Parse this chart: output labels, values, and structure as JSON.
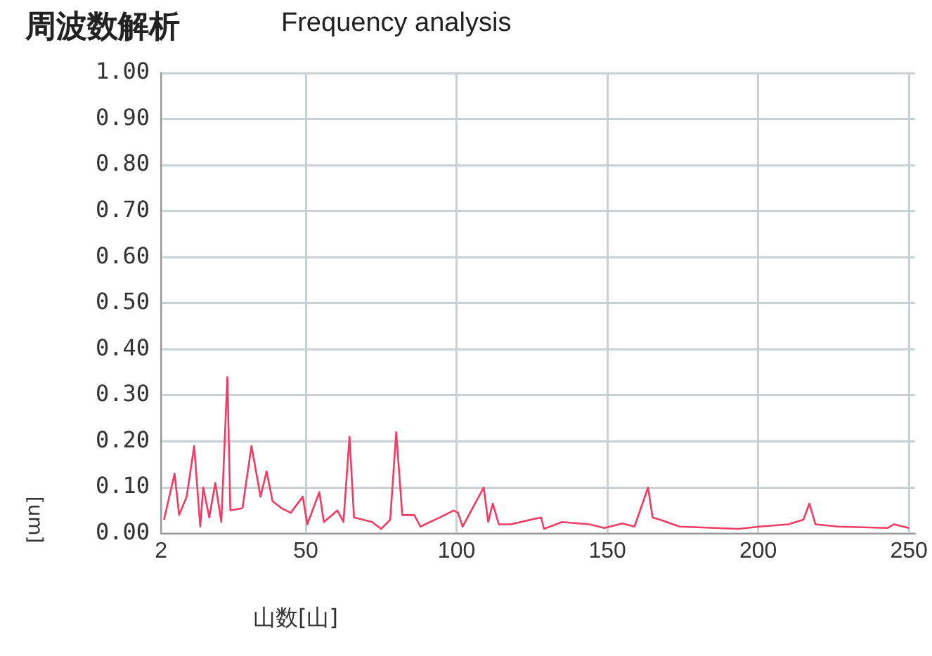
{
  "chart_data": {
    "type": "line",
    "title": "周波数解析",
    "subtitle": "Frequency analysis",
    "xlabel": "山数[山]",
    "ylabel": "[um]",
    "x": [
      3,
      6.5,
      8,
      10.5,
      13,
      15,
      16,
      18,
      20,
      22,
      24,
      25,
      29,
      32,
      35,
      37,
      39,
      42,
      45,
      49,
      50.5,
      54.5,
      56,
      60.5,
      62.5,
      64.5,
      66,
      72,
      75,
      78,
      80,
      82,
      86,
      88,
      94.5,
      99,
      100.5,
      102,
      109,
      110.5,
      112,
      114,
      118,
      128,
      129,
      135,
      144,
      149,
      155,
      159,
      163.5,
      165,
      167.5,
      174,
      186,
      193.5,
      200.5,
      210,
      215,
      217,
      219,
      226.5,
      243,
      245,
      250
    ],
    "series": [
      {
        "color": "#f03c64",
        "values": [
          0.03,
          0.13,
          0.04,
          0.08,
          0.19,
          0.015,
          0.1,
          0.035,
          0.11,
          0.025,
          0.34,
          0.05,
          0.055,
          0.19,
          0.08,
          0.135,
          0.07,
          0.055,
          0.045,
          0.08,
          0.02,
          0.09,
          0.025,
          0.05,
          0.025,
          0.21,
          0.035,
          0.025,
          0.01,
          0.03,
          0.22,
          0.04,
          0.04,
          0.015,
          0.035,
          0.05,
          0.045,
          0.015,
          0.1,
          0.025,
          0.065,
          0.02,
          0.02,
          0.035,
          0.01,
          0.025,
          0.02,
          0.012,
          0.022,
          0.015,
          0.1,
          0.035,
          0.03,
          0.015,
          0.012,
          0.01,
          0.015,
          0.02,
          0.03,
          0.065,
          0.02,
          0.015,
          0.012,
          0.02,
          0.012
        ]
      }
    ],
    "xlim": [
      2,
      252
    ],
    "xticks": [
      2,
      50,
      100,
      150,
      200,
      250
    ],
    "ylim": [
      0,
      1
    ],
    "yticks": [
      {
        "value": 0,
        "label": "0.00"
      },
      {
        "value": 0.1,
        "label": "0.10"
      },
      {
        "value": 0.2,
        "label": "0.20"
      },
      {
        "value": 0.3,
        "label": "0.30"
      },
      {
        "value": 0.4,
        "label": "0.40"
      },
      {
        "value": 0.5,
        "label": "0.50"
      },
      {
        "value": 0.6,
        "label": "0.60"
      },
      {
        "value": 0.7,
        "label": "0.70"
      },
      {
        "value": 0.8,
        "label": "0.80"
      },
      {
        "value": 0.9,
        "label": "0.90"
      },
      {
        "value": 1,
        "label": "1.00"
      }
    ],
    "grid": true,
    "legend": false,
    "marker": "none",
    "line_style": "solid"
  }
}
